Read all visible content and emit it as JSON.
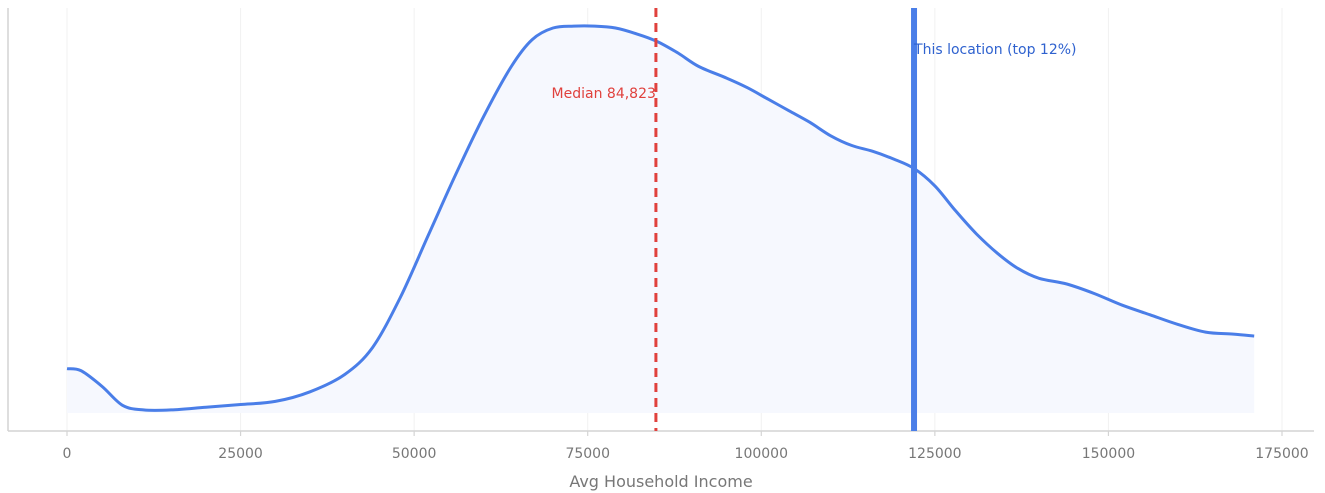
{
  "chart_data": {
    "type": "area",
    "title": "",
    "xlabel": "Avg Household Income",
    "ylabel": "",
    "xlim": [
      0,
      175000
    ],
    "ylim": [
      0,
      1
    ],
    "x_ticks": [
      0,
      25000,
      50000,
      75000,
      100000,
      125000,
      150000,
      175000
    ],
    "x_tick_labels": [
      "0",
      "25000",
      "50000",
      "75000",
      "100000",
      "125000",
      "150000",
      "175000"
    ],
    "grid": "vertical",
    "y_axis_shown": false,
    "series": [
      {
        "x": [
          0,
          2000,
          5000,
          8000,
          11000,
          15000,
          20000,
          25000,
          30000,
          35000,
          40000,
          44000,
          48000,
          52000,
          56000,
          60000,
          64000,
          67000,
          70000,
          73000,
          76000,
          79000,
          82000,
          85000,
          88000,
          91000,
          95000,
          98000,
          101000,
          104000,
          107000,
          110000,
          113000,
          116000,
          119000,
          122000,
          125000,
          128000,
          131000,
          134000,
          137000,
          140000,
          144000,
          148000,
          152000,
          156000,
          160000,
          164000,
          168000,
          171000
        ],
        "y": [
          0.115,
          0.11,
          0.07,
          0.02,
          0.008,
          0.008,
          0.015,
          0.022,
          0.03,
          0.055,
          0.1,
          0.17,
          0.3,
          0.46,
          0.62,
          0.77,
          0.9,
          0.97,
          1.0,
          1.005,
          1.005,
          1.0,
          0.985,
          0.965,
          0.935,
          0.9,
          0.87,
          0.845,
          0.815,
          0.785,
          0.755,
          0.72,
          0.695,
          0.68,
          0.66,
          0.635,
          0.59,
          0.525,
          0.465,
          0.415,
          0.375,
          0.35,
          0.335,
          0.31,
          0.28,
          0.255,
          0.23,
          0.21,
          0.205,
          0.2
        ]
      }
    ],
    "colors": {
      "curve": "#4a7ee8",
      "fill": "#f6f8fe",
      "median": "#e0413d",
      "location": "#4a7ee8",
      "location_text": "#2f62cf",
      "grid": "#f1f1f1",
      "axis": "#d4d4d4",
      "text": "#777777"
    },
    "annotations": [
      {
        "kind": "median",
        "x": 84823,
        "label": "Median 84,823",
        "style": "dashed",
        "label_anchor": "end"
      },
      {
        "kind": "location",
        "x": 122000,
        "label": "This location (top 12%)",
        "style": "solid",
        "label_anchor": "start"
      }
    ]
  }
}
